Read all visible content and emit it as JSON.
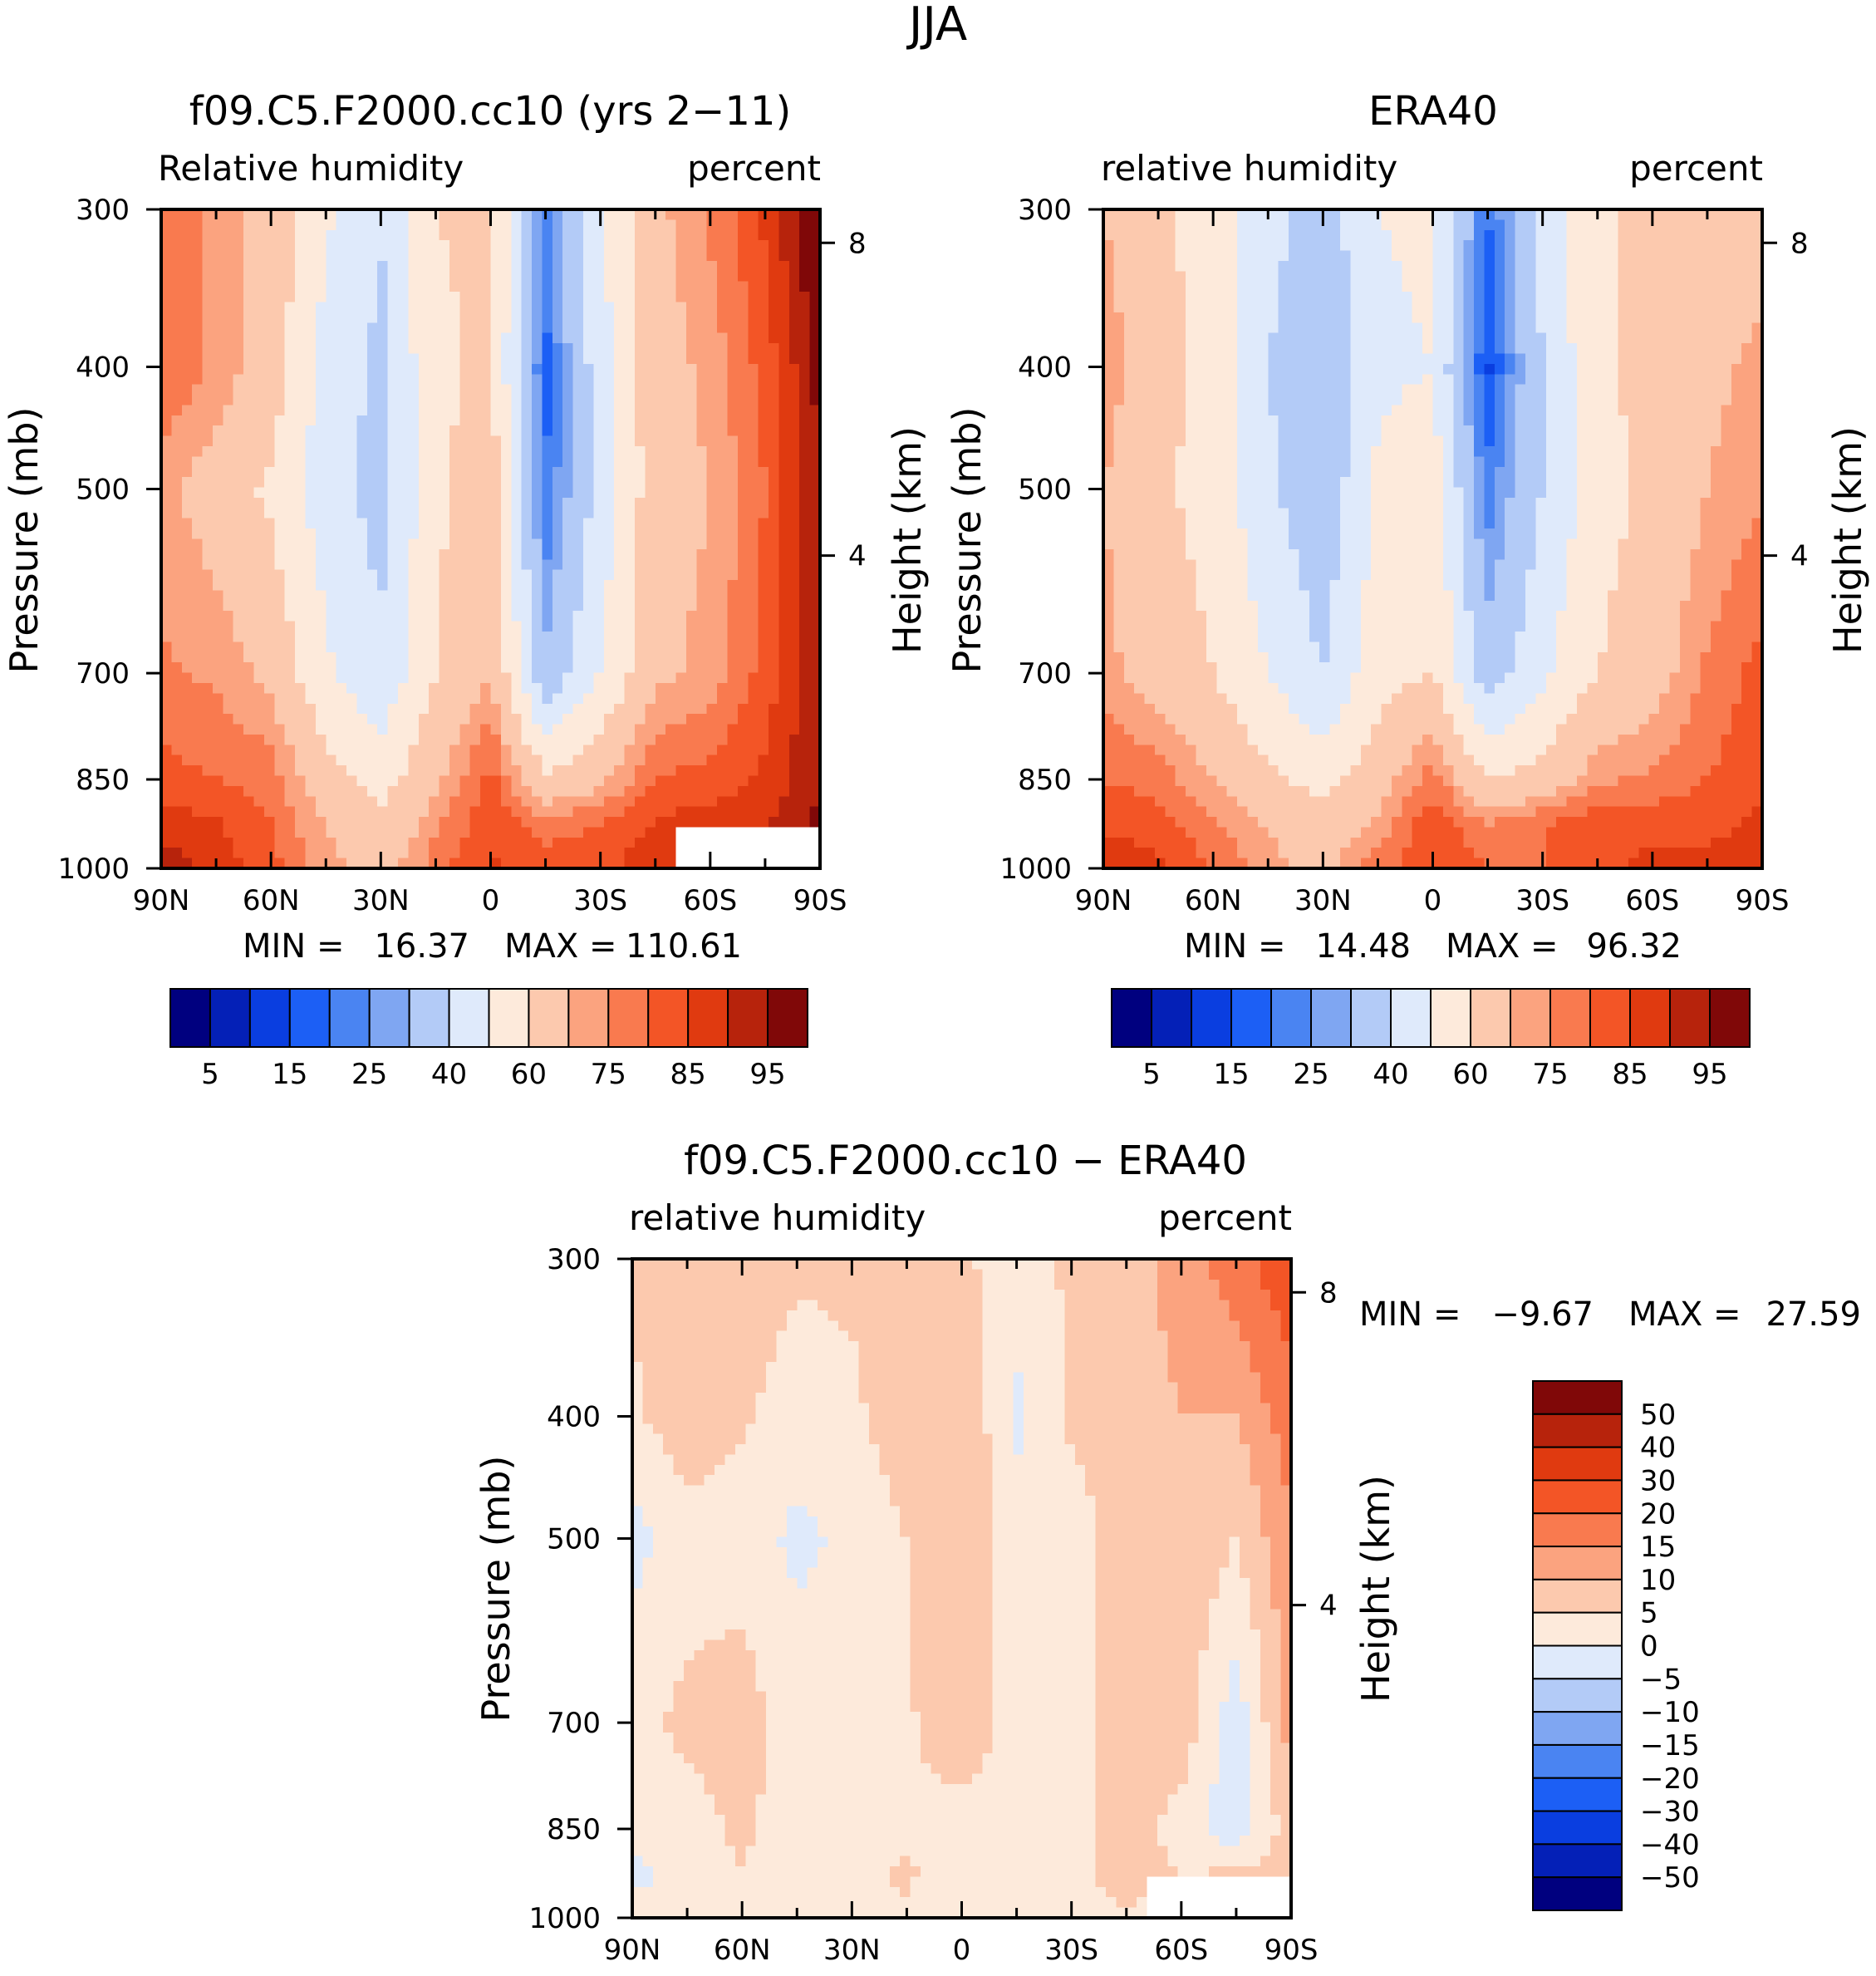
{
  "figure_title": "JJA",
  "colors": {
    "abs_scale": [
      "#00007f",
      "#0420b7",
      "#0a3ee0",
      "#1c5ff5",
      "#4a84f2",
      "#7fa6f2",
      "#b3cbf7",
      "#dfeafb",
      "#fdeadb",
      "#fcc9ae",
      "#fba37f",
      "#f97a4f",
      "#f35526",
      "#e03a10",
      "#b7230c",
      "#800808"
    ],
    "diff_scale": [
      "#00007f",
      "#0420b7",
      "#0a3ee0",
      "#1c5ff5",
      "#4a84f2",
      "#7fa6f2",
      "#b3cbf7",
      "#dfeafb",
      "#fdeadb",
      "#fcc9ae",
      "#fba37f",
      "#f97a4f",
      "#f35526",
      "#e03a10",
      "#b7230c",
      "#800808"
    ]
  },
  "chart_data": [
    {
      "id": "model",
      "type": "contour",
      "title": "f09.C5.F2000.cc10 (yrs 2-11)",
      "left_label": "Relative humidity",
      "right_label": "percent",
      "ylabel": "Pressure (mb)",
      "y2label": "Height (km)",
      "x_ticks": [
        "90N",
        "60N",
        "30N",
        "0",
        "30S",
        "60S",
        "90S"
      ],
      "y_ticks": [
        "300",
        "400",
        "500",
        "700",
        "850",
        "1000"
      ],
      "y2_ticks": [
        "8",
        "4"
      ],
      "xlim": [
        90,
        -90
      ],
      "ylim": [
        1000,
        300
      ],
      "min_label": "MIN =",
      "min_value": "16.37",
      "max_label": "MAX =",
      "max_value": "110.61",
      "lat": [
        90,
        75,
        60,
        45,
        30,
        15,
        0,
        -15,
        -30,
        -45,
        -60,
        -75,
        -90
      ],
      "pressure": [
        1000,
        925,
        850,
        700,
        500,
        400,
        300
      ],
      "values": [
        [
          93,
          88,
          82,
          72,
          66,
          78,
          86,
          82,
          84,
          88,
          88,
          92,
          96
        ],
        [
          88,
          86,
          80,
          70,
          62,
          74,
          84,
          78,
          80,
          86,
          88,
          90,
          96
        ],
        [
          82,
          80,
          78,
          64,
          56,
          68,
          82,
          62,
          68,
          80,
          82,
          86,
          95
        ],
        [
          76,
          74,
          68,
          52,
          42,
          60,
          70,
          32,
          50,
          68,
          72,
          82,
          95
        ],
        [
          72,
          66,
          58,
          44,
          36,
          58,
          66,
          20,
          44,
          66,
          70,
          80,
          95
        ],
        [
          80,
          74,
          66,
          46,
          38,
          58,
          62,
          18,
          46,
          66,
          72,
          82,
          97
        ],
        [
          78,
          74,
          66,
          52,
          40,
          60,
          62,
          24,
          48,
          68,
          76,
          86,
          102
        ]
      ],
      "missing_region": {
        "lat_min": -90,
        "lat_max": -50,
        "p_min": 925,
        "p_max": 1000
      }
    },
    {
      "id": "obs",
      "type": "contour",
      "title": "ERA40",
      "left_label": "relative humidity",
      "right_label": "percent",
      "ylabel": "Pressure (mb)",
      "y2label": "Height (km)",
      "x_ticks": [
        "90N",
        "60N",
        "30N",
        "0",
        "30S",
        "60S",
        "90S"
      ],
      "y_ticks": [
        "300",
        "400",
        "500",
        "700",
        "850",
        "1000"
      ],
      "y2_ticks": [
        "8",
        "4"
      ],
      "xlim": [
        90,
        -90
      ],
      "ylim": [
        1000,
        300
      ],
      "min_label": "MIN =",
      "min_value": "14.48",
      "max_label": "MAX =",
      "max_value": "96.32",
      "lat": [
        90,
        75,
        60,
        45,
        30,
        15,
        0,
        -15,
        -30,
        -45,
        -60,
        -75,
        -90
      ],
      "pressure": [
        1000,
        925,
        850,
        700,
        500,
        400,
        300
      ],
      "values": [
        [
          90,
          86,
          80,
          72,
          68,
          78,
          84,
          80,
          80,
          84,
          86,
          86,
          88
        ],
        [
          84,
          82,
          76,
          70,
          64,
          72,
          84,
          76,
          80,
          84,
          84,
          84,
          86
        ],
        [
          80,
          78,
          70,
          62,
          56,
          66,
          78,
          60,
          64,
          74,
          76,
          80,
          84
        ],
        [
          72,
          66,
          60,
          50,
          40,
          56,
          60,
          34,
          48,
          60,
          66,
          76,
          82
        ],
        [
          70,
          62,
          56,
          42,
          32,
          52,
          56,
          22,
          40,
          56,
          62,
          70,
          74
        ],
        [
          74,
          64,
          56,
          40,
          32,
          48,
          50,
          14,
          40,
          58,
          64,
          68,
          72
        ],
        [
          70,
          62,
          56,
          44,
          34,
          50,
          52,
          20,
          44,
          60,
          60,
          64,
          66
        ]
      ]
    },
    {
      "id": "diff",
      "type": "contour",
      "title": "f09.C5.F2000.cc10 - ERA40",
      "left_label": "relative humidity",
      "right_label": "percent",
      "ylabel": "Pressure (mb)",
      "y2label": "Height (km)",
      "x_ticks": [
        "90N",
        "60N",
        "30N",
        "0",
        "30S",
        "60S",
        "90S"
      ],
      "y_ticks": [
        "300",
        "400",
        "500",
        "700",
        "850",
        "1000"
      ],
      "y2_ticks": [
        "8",
        "4"
      ],
      "xlim": [
        90,
        -90
      ],
      "ylim": [
        1000,
        300
      ],
      "min_label": "MIN =",
      "min_value": "-9.67",
      "max_label": "MAX =",
      "max_value": "27.59",
      "lat": [
        90,
        75,
        60,
        45,
        30,
        15,
        0,
        -15,
        -30,
        -45,
        -60,
        -75,
        -90
      ],
      "pressure": [
        1000,
        925,
        850,
        700,
        500,
        400,
        300
      ],
      "values": [
        [
          3,
          2,
          4,
          3,
          4,
          4,
          1,
          2,
          4,
          4,
          2,
          5,
          6
        ],
        [
          -2,
          2,
          5,
          2,
          3,
          6,
          1,
          3,
          3,
          8,
          5,
          6,
          9
        ],
        [
          2,
          3,
          6,
          2,
          2,
          4,
          2,
          3,
          3,
          7,
          3,
          -4,
          8
        ],
        [
          4,
          6,
          8,
          2,
          2,
          4,
          10,
          2,
          2,
          10,
          8,
          -3,
          12
        ],
        [
          -2,
          3,
          2,
          -1,
          1,
          5,
          10,
          2,
          2,
          8,
          9,
          5,
          14
        ],
        [
          4,
          8,
          6,
          2,
          4,
          8,
          10,
          -1,
          6,
          8,
          10,
          10,
          18
        ],
        [
          6,
          8,
          8,
          6,
          6,
          8,
          6,
          2,
          6,
          8,
          12,
          18,
          24
        ]
      ],
      "missing_region": {
        "lat_min": -90,
        "lat_max": -50,
        "p_min": 925,
        "p_max": 1000
      }
    }
  ],
  "colorbars": {
    "abs": {
      "labels": [
        "5",
        "15",
        "25",
        "40",
        "60",
        "75",
        "85",
        "95"
      ],
      "levels": [
        5,
        10,
        15,
        20,
        25,
        30,
        40,
        50,
        60,
        70,
        75,
        80,
        85,
        90,
        95
      ]
    },
    "diff": {
      "labels": [
        "50",
        "40",
        "30",
        "20",
        "15",
        "10",
        "5",
        "0",
        "-5",
        "-10",
        "-15",
        "-20",
        "-30",
        "-40",
        "-50"
      ],
      "levels": [
        -50,
        -40,
        -30,
        -20,
        -15,
        -10,
        -5,
        0,
        5,
        10,
        15,
        20,
        30,
        40,
        50
      ]
    }
  }
}
